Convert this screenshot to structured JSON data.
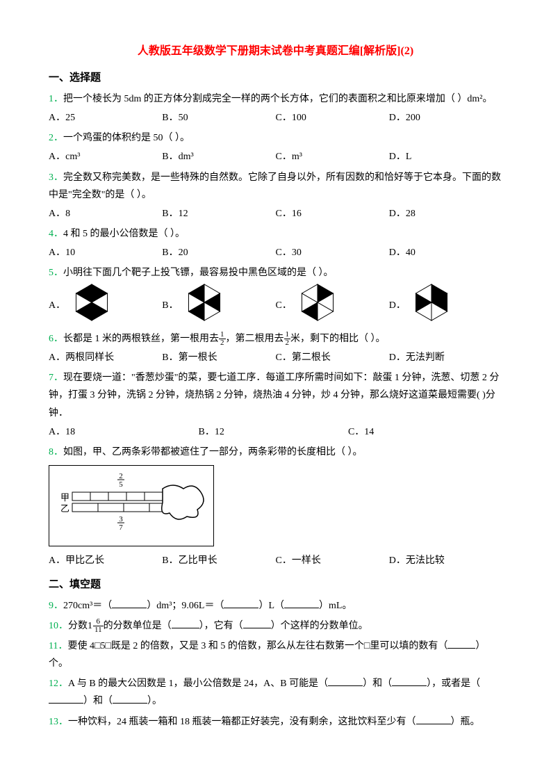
{
  "title": "人教版五年级数学下册期末试卷中考真题汇编[解析版](2)",
  "section1": "一、选择题",
  "section2": "二、填空题",
  "questions": {
    "q1": {
      "num": "1．",
      "text": "把一个棱长为 5dm 的正方体分割成完全一样的两个长方体，它们的表面积之和比原来增加（   ）dm²。",
      "optA": "A．25",
      "optB": "B．50",
      "optC": "C．100",
      "optD": "D．200"
    },
    "q2": {
      "num": "2．",
      "text": "一个鸡蛋的体积约是 50（   ）。",
      "optA": "A．cm³",
      "optB": "B．dm³",
      "optC": "C．m³",
      "optD": "D．L"
    },
    "q3": {
      "num": "3．",
      "text": "完全数又称完美数，是一些特殊的自然数。它除了自身以外，所有因数的和恰好等于它本身。下面的数中是\"完全数\"的是（    ）。",
      "optA": "A．8",
      "optB": "B．12",
      "optC": "C．16",
      "optD": "D．28"
    },
    "q4": {
      "num": "4．",
      "text": "4 和 5 的最小公倍数是（   ）。",
      "optA": "A．10",
      "optB": "B．20",
      "optC": "C．30",
      "optD": "D．40"
    },
    "q5": {
      "num": "5．",
      "text": "小明往下面几个靶子上投飞镖，最容易投中黑色区域的是（   ）。",
      "optA": "A．",
      "optB": "B．",
      "optC": "C．",
      "optD": "D．",
      "hexagons": {
        "A": {
          "pattern": [
            1,
            0,
            1,
            1,
            0,
            1
          ],
          "fill": "#000000",
          "stroke": "#000000"
        },
        "B": {
          "pattern": [
            0,
            1,
            0,
            1,
            0,
            1
          ],
          "fill": "#000000",
          "stroke": "#000000"
        },
        "C": {
          "pattern": [
            1,
            0,
            0,
            1,
            0,
            0
          ],
          "fill": "#000000",
          "stroke": "#000000"
        },
        "D": {
          "pattern": [
            1,
            1,
            0,
            0,
            1,
            0
          ],
          "fill": "#000000",
          "stroke": "#000000"
        }
      }
    },
    "q6": {
      "num": "6．",
      "text_pre": "长都是 1 米的两根铁丝，第一根用去",
      "frac1_num": "1",
      "frac1_den": "2",
      "text_mid": "，第二根用去",
      "frac2_num": "1",
      "frac2_den": "2",
      "text_post": "米，剩下的相比（   ）。",
      "optA": "A．两根同样长",
      "optB": "B．第一根长",
      "optC": "C．第二根长",
      "optD": "D．无法判断"
    },
    "q7": {
      "num": "7．",
      "text": "现在要烧一道：\"香葱炒蛋\"的菜，要七道工序．每道工序所需时间如下：敲蛋 1 分钟，洗葱、切葱 2 分钟，打蛋 3 分钟，洗锅 2 分钟，烧热锅 2 分钟，烧热油 4 分钟，炒 4 分钟，那么烧好这道菜最短需要(  )分钟．",
      "optA": "A．18",
      "optB": "B．12",
      "optC": "C．14"
    },
    "q8": {
      "num": "8．",
      "text": "如图，甲、乙两条彩带都被遮住了一部分，两条彩带的长度相比（   ）。",
      "diagram": {
        "label_jia": "甲",
        "label_yi": "乙",
        "frac_top_num": "2",
        "frac_top_den": "5",
        "frac_bot_num": "3",
        "frac_bot_den": "7",
        "bar_color": "#ffffff",
        "border_color": "#000000"
      },
      "optA": "A．甲比乙长",
      "optB": "B．乙比甲长",
      "optC": "C．一样长",
      "optD": "D．无法比较"
    },
    "q9": {
      "num": "9．",
      "text_a": "270cm³＝（",
      "text_b": "）dm³；9.06L＝（",
      "text_c": "）L（",
      "text_d": "）mL。"
    },
    "q10": {
      "num": "10．",
      "text_pre": "分数",
      "whole": "1",
      "frac_num": "6",
      "frac_den": "11",
      "text_mid": "的分数单位是（",
      "text_mid2": "），它有（",
      "text_post": "）个这样的分数单位。"
    },
    "q11": {
      "num": "11．",
      "text_a": "要使 4□5□既是 2 的倍数，又是 3 和 5 的倍数，那么从左往右数第一个□里可以填的数有（",
      "text_b": "）个。"
    },
    "q12": {
      "num": "12．",
      "text_a": "A 与 B 的最大公因数是 1，最小公倍数是 24，A、B 可能是（",
      "text_b": "）和（",
      "text_c": "），或者是（",
      "text_d": "）和（",
      "text_e": "）。"
    },
    "q13": {
      "num": "13．",
      "text_a": "一种饮料，24 瓶装一箱和 18 瓶装一箱都正好装完，没有剩余，这批饮料至少有（",
      "text_b": "）瓶。"
    }
  }
}
